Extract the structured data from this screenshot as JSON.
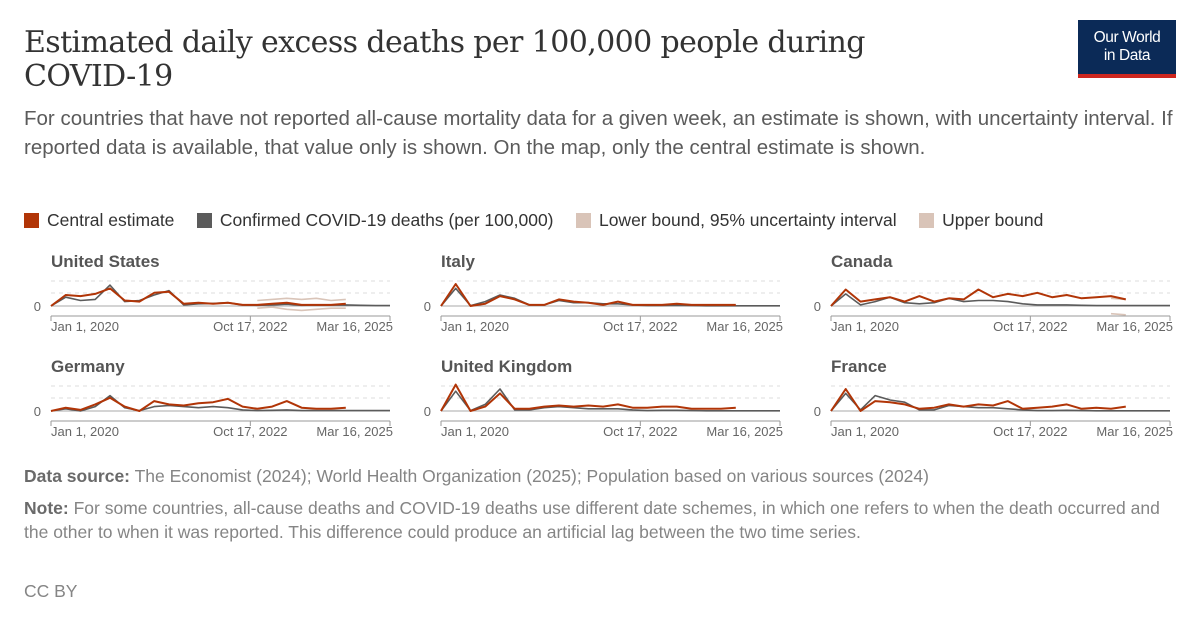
{
  "header": {
    "title": "Estimated daily excess deaths per 100,000 people during COVID-19",
    "subtitle": "For countries that have not reported all-cause mortality data for a given week, an estimate is shown, with uncertainty interval. If reported data is available, that value only is shown. On the map, only the central estimate is shown.",
    "logo_line1": "Our World",
    "logo_line2": "in Data"
  },
  "legend": [
    {
      "label": "Central estimate",
      "color": "#b13507"
    },
    {
      "label": "Confirmed COVID-19 deaths (per 100,000)",
      "color": "#5b5b5b"
    },
    {
      "label": "Lower bound, 95% uncertainty interval",
      "color": "#d9c4b8"
    },
    {
      "label": "Upper bound",
      "color": "#d9c4b8"
    }
  ],
  "footer": {
    "source_label": "Data source:",
    "source_text": "The Economist (2024); World Health Organization (2025); Population based on various sources (2024)",
    "note_label": "Note:",
    "note_text": "For some countries, all-cause deaths and COVID-19 deaths use different date schemes, in which one refers to when the death occurred and the other to when it was reported. This difference could produce an artificial lag between the two time series.",
    "license": "CC BY"
  },
  "chart_data": [
    {
      "type": "line",
      "title": "United States",
      "x_ticks": [
        "Jan 1, 2020",
        "Oct 17, 2022",
        "Mar 16, 2025"
      ],
      "y_ticks": [
        "0"
      ],
      "x": [
        "2020-01",
        "2020-04",
        "2020-07",
        "2020-10",
        "2021-01",
        "2021-04",
        "2021-07",
        "2021-10",
        "2022-01",
        "2022-04",
        "2022-07",
        "2022-10",
        "2023-01",
        "2023-04",
        "2023-07",
        "2023-10",
        "2024-01",
        "2024-04",
        "2024-07",
        "2024-10",
        "2025-01",
        "2025-04",
        "2025-07",
        "2025-10"
      ],
      "series": [
        {
          "name": "Central estimate",
          "values": [
            0.0,
            0.5,
            0.45,
            0.55,
            0.8,
            0.25,
            0.2,
            0.6,
            0.65,
            0.1,
            0.15,
            0.1,
            0.15,
            0.05,
            0.05,
            0.1,
            0.15,
            0.05,
            0.05,
            0.05,
            0.1,
            null,
            null,
            null
          ]
        },
        {
          "name": "Confirmed COVID-19 deaths (per 100,000)",
          "values": [
            0.0,
            0.4,
            0.25,
            0.3,
            0.95,
            0.2,
            0.25,
            0.5,
            0.7,
            0.05,
            0.1,
            0.12,
            0.15,
            0.05,
            0.03,
            0.05,
            0.08,
            0.03,
            0.05,
            0.04,
            0.05,
            0.03,
            0.02,
            0.02
          ]
        },
        {
          "name": "Lower bound, 95% uncertainty interval",
          "values": [
            null,
            null,
            null,
            null,
            null,
            null,
            null,
            null,
            null,
            null,
            null,
            null,
            null,
            null,
            -0.1,
            -0.05,
            -0.15,
            -0.2,
            -0.15,
            -0.1,
            -0.1,
            null,
            null,
            null
          ]
        },
        {
          "name": "Upper bound",
          "values": [
            null,
            null,
            null,
            null,
            null,
            null,
            null,
            null,
            null,
            null,
            null,
            null,
            null,
            null,
            0.25,
            0.3,
            0.35,
            0.3,
            0.35,
            0.25,
            0.3,
            null,
            null,
            null
          ]
        }
      ]
    },
    {
      "type": "line",
      "title": "Italy",
      "x_ticks": [
        "Jan 1, 2020",
        "Oct 17, 2022",
        "Mar 16, 2025"
      ],
      "y_ticks": [
        "0"
      ],
      "x": [
        "2020-01",
        "2020-04",
        "2020-07",
        "2020-10",
        "2021-01",
        "2021-04",
        "2021-07",
        "2021-10",
        "2022-01",
        "2022-04",
        "2022-07",
        "2022-10",
        "2023-01",
        "2023-04",
        "2023-07",
        "2023-10",
        "2024-01",
        "2024-04",
        "2024-07",
        "2024-10",
        "2025-01",
        "2025-04",
        "2025-07",
        "2025-10"
      ],
      "series": [
        {
          "name": "Central estimate",
          "values": [
            0.0,
            1.0,
            0.0,
            0.1,
            0.45,
            0.3,
            0.05,
            0.05,
            0.3,
            0.2,
            0.15,
            0.05,
            0.2,
            0.05,
            0.05,
            0.05,
            0.1,
            0.05,
            0.05,
            0.05,
            0.05,
            null,
            null,
            null
          ]
        },
        {
          "name": "Confirmed COVID-19 deaths (per 100,000)",
          "values": [
            0.0,
            0.8,
            0.02,
            0.2,
            0.5,
            0.35,
            0.05,
            0.05,
            0.25,
            0.15,
            0.15,
            0.1,
            0.1,
            0.05,
            0.02,
            0.02,
            0.03,
            0.02,
            0.01,
            0.01,
            0.01,
            0.01,
            0.01,
            0.01
          ]
        }
      ]
    },
    {
      "type": "line",
      "title": "Canada",
      "x_ticks": [
        "Jan 1, 2020",
        "Oct 17, 2022",
        "Mar 16, 2025"
      ],
      "y_ticks": [
        "0"
      ],
      "x": [
        "2020-01",
        "2020-04",
        "2020-07",
        "2020-10",
        "2021-01",
        "2021-04",
        "2021-07",
        "2021-10",
        "2022-01",
        "2022-04",
        "2022-07",
        "2022-10",
        "2023-01",
        "2023-04",
        "2023-07",
        "2023-10",
        "2024-01",
        "2024-04",
        "2024-07",
        "2024-10",
        "2025-01",
        "2025-04",
        "2025-07",
        "2025-10"
      ],
      "series": [
        {
          "name": "Central estimate",
          "values": [
            0.0,
            0.75,
            0.2,
            0.3,
            0.4,
            0.2,
            0.45,
            0.2,
            0.35,
            0.3,
            0.75,
            0.4,
            0.55,
            0.45,
            0.6,
            0.4,
            0.5,
            0.35,
            0.4,
            0.45,
            0.3,
            null,
            null,
            null
          ]
        },
        {
          "name": "Confirmed COVID-19 deaths (per 100,000)",
          "values": [
            0.0,
            0.55,
            0.05,
            0.2,
            0.4,
            0.15,
            0.1,
            0.15,
            0.35,
            0.2,
            0.25,
            0.25,
            0.2,
            0.1,
            0.05,
            0.05,
            0.05,
            0.03,
            0.02,
            0.02,
            0.02,
            0.02,
            0.02,
            0.02
          ]
        },
        {
          "name": "Lower bound, 95% uncertainty interval",
          "values": [
            null,
            null,
            null,
            null,
            null,
            null,
            null,
            null,
            null,
            null,
            null,
            null,
            null,
            null,
            null,
            null,
            null,
            null,
            null,
            -0.35,
            -0.4,
            null,
            null,
            null
          ]
        },
        {
          "name": "Upper bound",
          "values": [
            null,
            null,
            null,
            null,
            null,
            null,
            null,
            null,
            null,
            null,
            null,
            null,
            null,
            null,
            null,
            null,
            null,
            null,
            null,
            0.35,
            0.3,
            null,
            null,
            null
          ]
        }
      ]
    },
    {
      "type": "line",
      "title": "Germany",
      "x_ticks": [
        "Jan 1, 2020",
        "Oct 17, 2022",
        "Mar 16, 2025"
      ],
      "y_ticks": [
        "0"
      ],
      "x": [
        "2020-01",
        "2020-04",
        "2020-07",
        "2020-10",
        "2021-01",
        "2021-04",
        "2021-07",
        "2021-10",
        "2022-01",
        "2022-04",
        "2022-07",
        "2022-10",
        "2023-01",
        "2023-04",
        "2023-07",
        "2023-10",
        "2024-01",
        "2024-04",
        "2024-07",
        "2024-10",
        "2025-01",
        "2025-04",
        "2025-07",
        "2025-10"
      ],
      "series": [
        {
          "name": "Central estimate",
          "values": [
            0.0,
            0.15,
            0.05,
            0.3,
            0.6,
            0.2,
            0.0,
            0.45,
            0.3,
            0.25,
            0.35,
            0.4,
            0.55,
            0.2,
            0.1,
            0.2,
            0.45,
            0.15,
            0.1,
            0.1,
            0.15,
            null,
            null,
            null
          ]
        },
        {
          "name": "Confirmed COVID-19 deaths (per 100,000)",
          "values": [
            0.0,
            0.1,
            0.0,
            0.2,
            0.7,
            0.15,
            0.02,
            0.2,
            0.25,
            0.2,
            0.15,
            0.2,
            0.15,
            0.05,
            0.02,
            0.03,
            0.05,
            0.02,
            0.02,
            0.02,
            0.02,
            0.02,
            0.02,
            0.02
          ]
        }
      ]
    },
    {
      "type": "line",
      "title": "United Kingdom",
      "x_ticks": [
        "Jan 1, 2020",
        "Oct 17, 2022",
        "Mar 16, 2025"
      ],
      "y_ticks": [
        "0"
      ],
      "x": [
        "2020-01",
        "2020-04",
        "2020-07",
        "2020-10",
        "2021-01",
        "2021-04",
        "2021-07",
        "2021-10",
        "2022-01",
        "2022-04",
        "2022-07",
        "2022-10",
        "2023-01",
        "2023-04",
        "2023-07",
        "2023-10",
        "2024-01",
        "2024-04",
        "2024-07",
        "2024-10",
        "2025-01",
        "2025-04",
        "2025-07",
        "2025-10"
      ],
      "series": [
        {
          "name": "Central estimate",
          "values": [
            0.0,
            1.2,
            0.0,
            0.2,
            0.8,
            0.1,
            0.1,
            0.2,
            0.25,
            0.2,
            0.25,
            0.2,
            0.3,
            0.15,
            0.15,
            0.2,
            0.2,
            0.1,
            0.1,
            0.1,
            0.15,
            null,
            null,
            null
          ]
        },
        {
          "name": "Confirmed COVID-19 deaths (per 100,000)",
          "values": [
            0.0,
            0.9,
            0.02,
            0.3,
            1.0,
            0.05,
            0.05,
            0.15,
            0.2,
            0.15,
            0.1,
            0.1,
            0.1,
            0.05,
            0.02,
            0.03,
            0.03,
            0.02,
            0.01,
            0.01,
            0.01,
            0.01,
            0.01,
            0.01
          ]
        }
      ]
    },
    {
      "type": "line",
      "title": "France",
      "x_ticks": [
        "Jan 1, 2020",
        "Oct 17, 2022",
        "Mar 16, 2025"
      ],
      "y_ticks": [
        "0"
      ],
      "x": [
        "2020-01",
        "2020-04",
        "2020-07",
        "2020-10",
        "2021-01",
        "2021-04",
        "2021-07",
        "2021-10",
        "2022-01",
        "2022-04",
        "2022-07",
        "2022-10",
        "2023-01",
        "2023-04",
        "2023-07",
        "2023-10",
        "2024-01",
        "2024-04",
        "2024-07",
        "2024-10",
        "2025-01",
        "2025-04",
        "2025-07",
        "2025-10"
      ],
      "series": [
        {
          "name": "Central estimate",
          "values": [
            0.0,
            1.0,
            0.0,
            0.45,
            0.4,
            0.3,
            0.1,
            0.15,
            0.3,
            0.2,
            0.3,
            0.25,
            0.45,
            0.1,
            0.15,
            0.2,
            0.3,
            0.1,
            0.15,
            0.1,
            0.2,
            null,
            null,
            null
          ]
        },
        {
          "name": "Confirmed COVID-19 deaths (per 100,000)",
          "values": [
            0.0,
            0.8,
            0.05,
            0.7,
            0.5,
            0.4,
            0.05,
            0.05,
            0.25,
            0.2,
            0.15,
            0.15,
            0.1,
            0.05,
            0.02,
            0.02,
            0.03,
            0.02,
            0.01,
            0.01,
            0.01,
            0.01,
            0.01,
            0.01
          ]
        }
      ]
    }
  ]
}
